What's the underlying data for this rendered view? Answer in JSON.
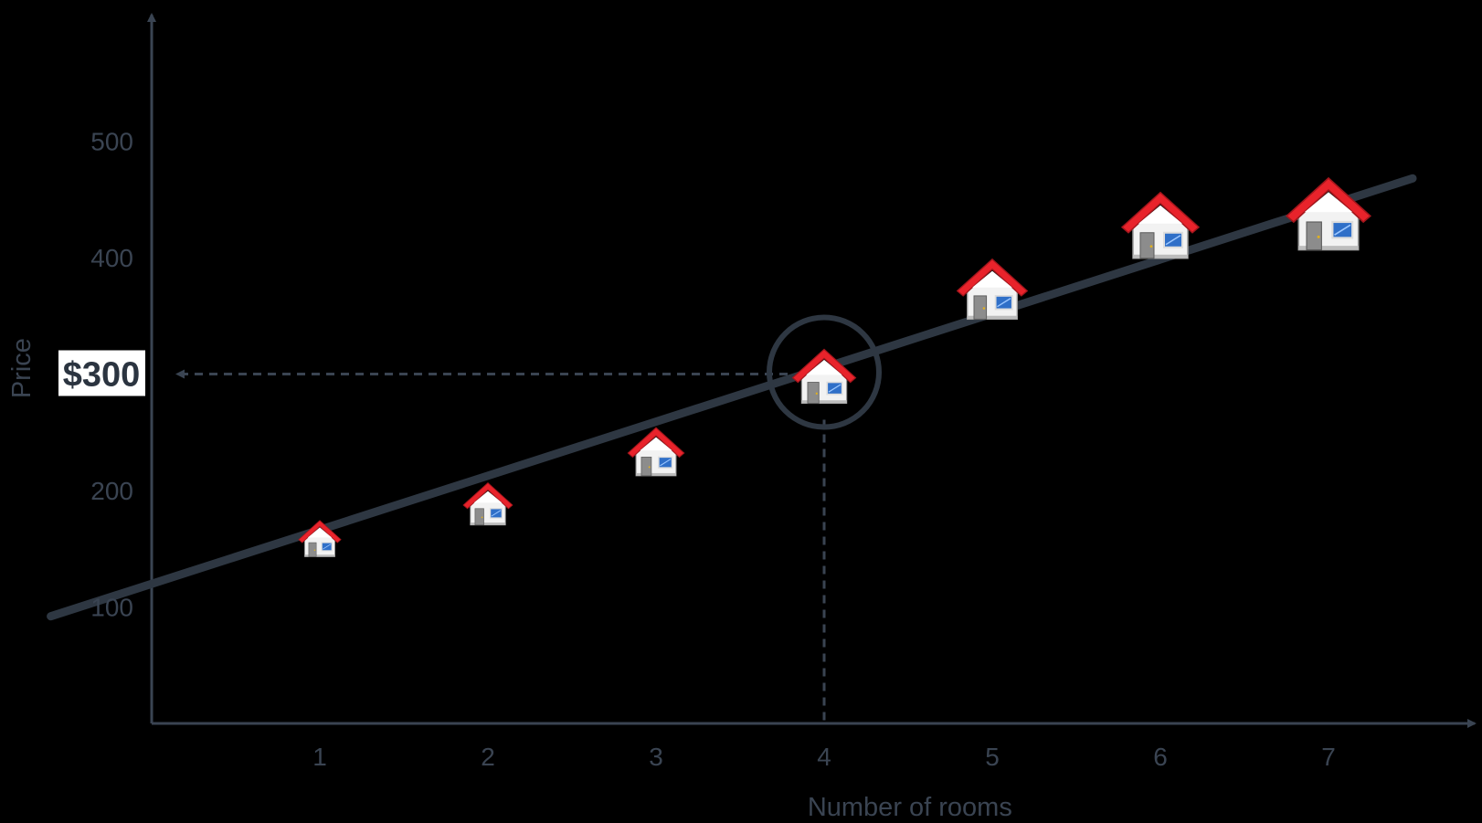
{
  "chart_data": {
    "type": "scatter",
    "xlabel": "Number of rooms",
    "ylabel": "Price",
    "x_ticks": [
      "1",
      "2",
      "3",
      "4",
      "5",
      "6",
      "7"
    ],
    "y_ticks": [
      "100",
      "200",
      "400",
      "500"
    ],
    "xlim": [
      0.1,
      7.6
    ],
    "ylim": [
      7,
      600
    ],
    "points": [
      {
        "x": 1,
        "y": 160
      },
      {
        "x": 2,
        "y": 190
      },
      {
        "x": 3,
        "y": 235
      },
      {
        "x": 4,
        "y": 300
      },
      {
        "x": 5,
        "y": 375
      },
      {
        "x": 6,
        "y": 430
      },
      {
        "x": 7,
        "y": 440
      }
    ],
    "trendline": {
      "x0": -0.6,
      "y0": 92,
      "x1": 7.5,
      "y1": 468
    },
    "highlight": {
      "x": 4,
      "y": 300,
      "label": "$300"
    },
    "marker": "house-icon",
    "colors": {
      "background": "#000000",
      "axis": "#3a4452",
      "trendline": "#2e3742",
      "roof": "#e8232b",
      "house_wall": "#f2f2f2",
      "window": "#2f6fc8",
      "callout_bg": "#ffffff"
    },
    "grid": false,
    "legend": "none"
  }
}
